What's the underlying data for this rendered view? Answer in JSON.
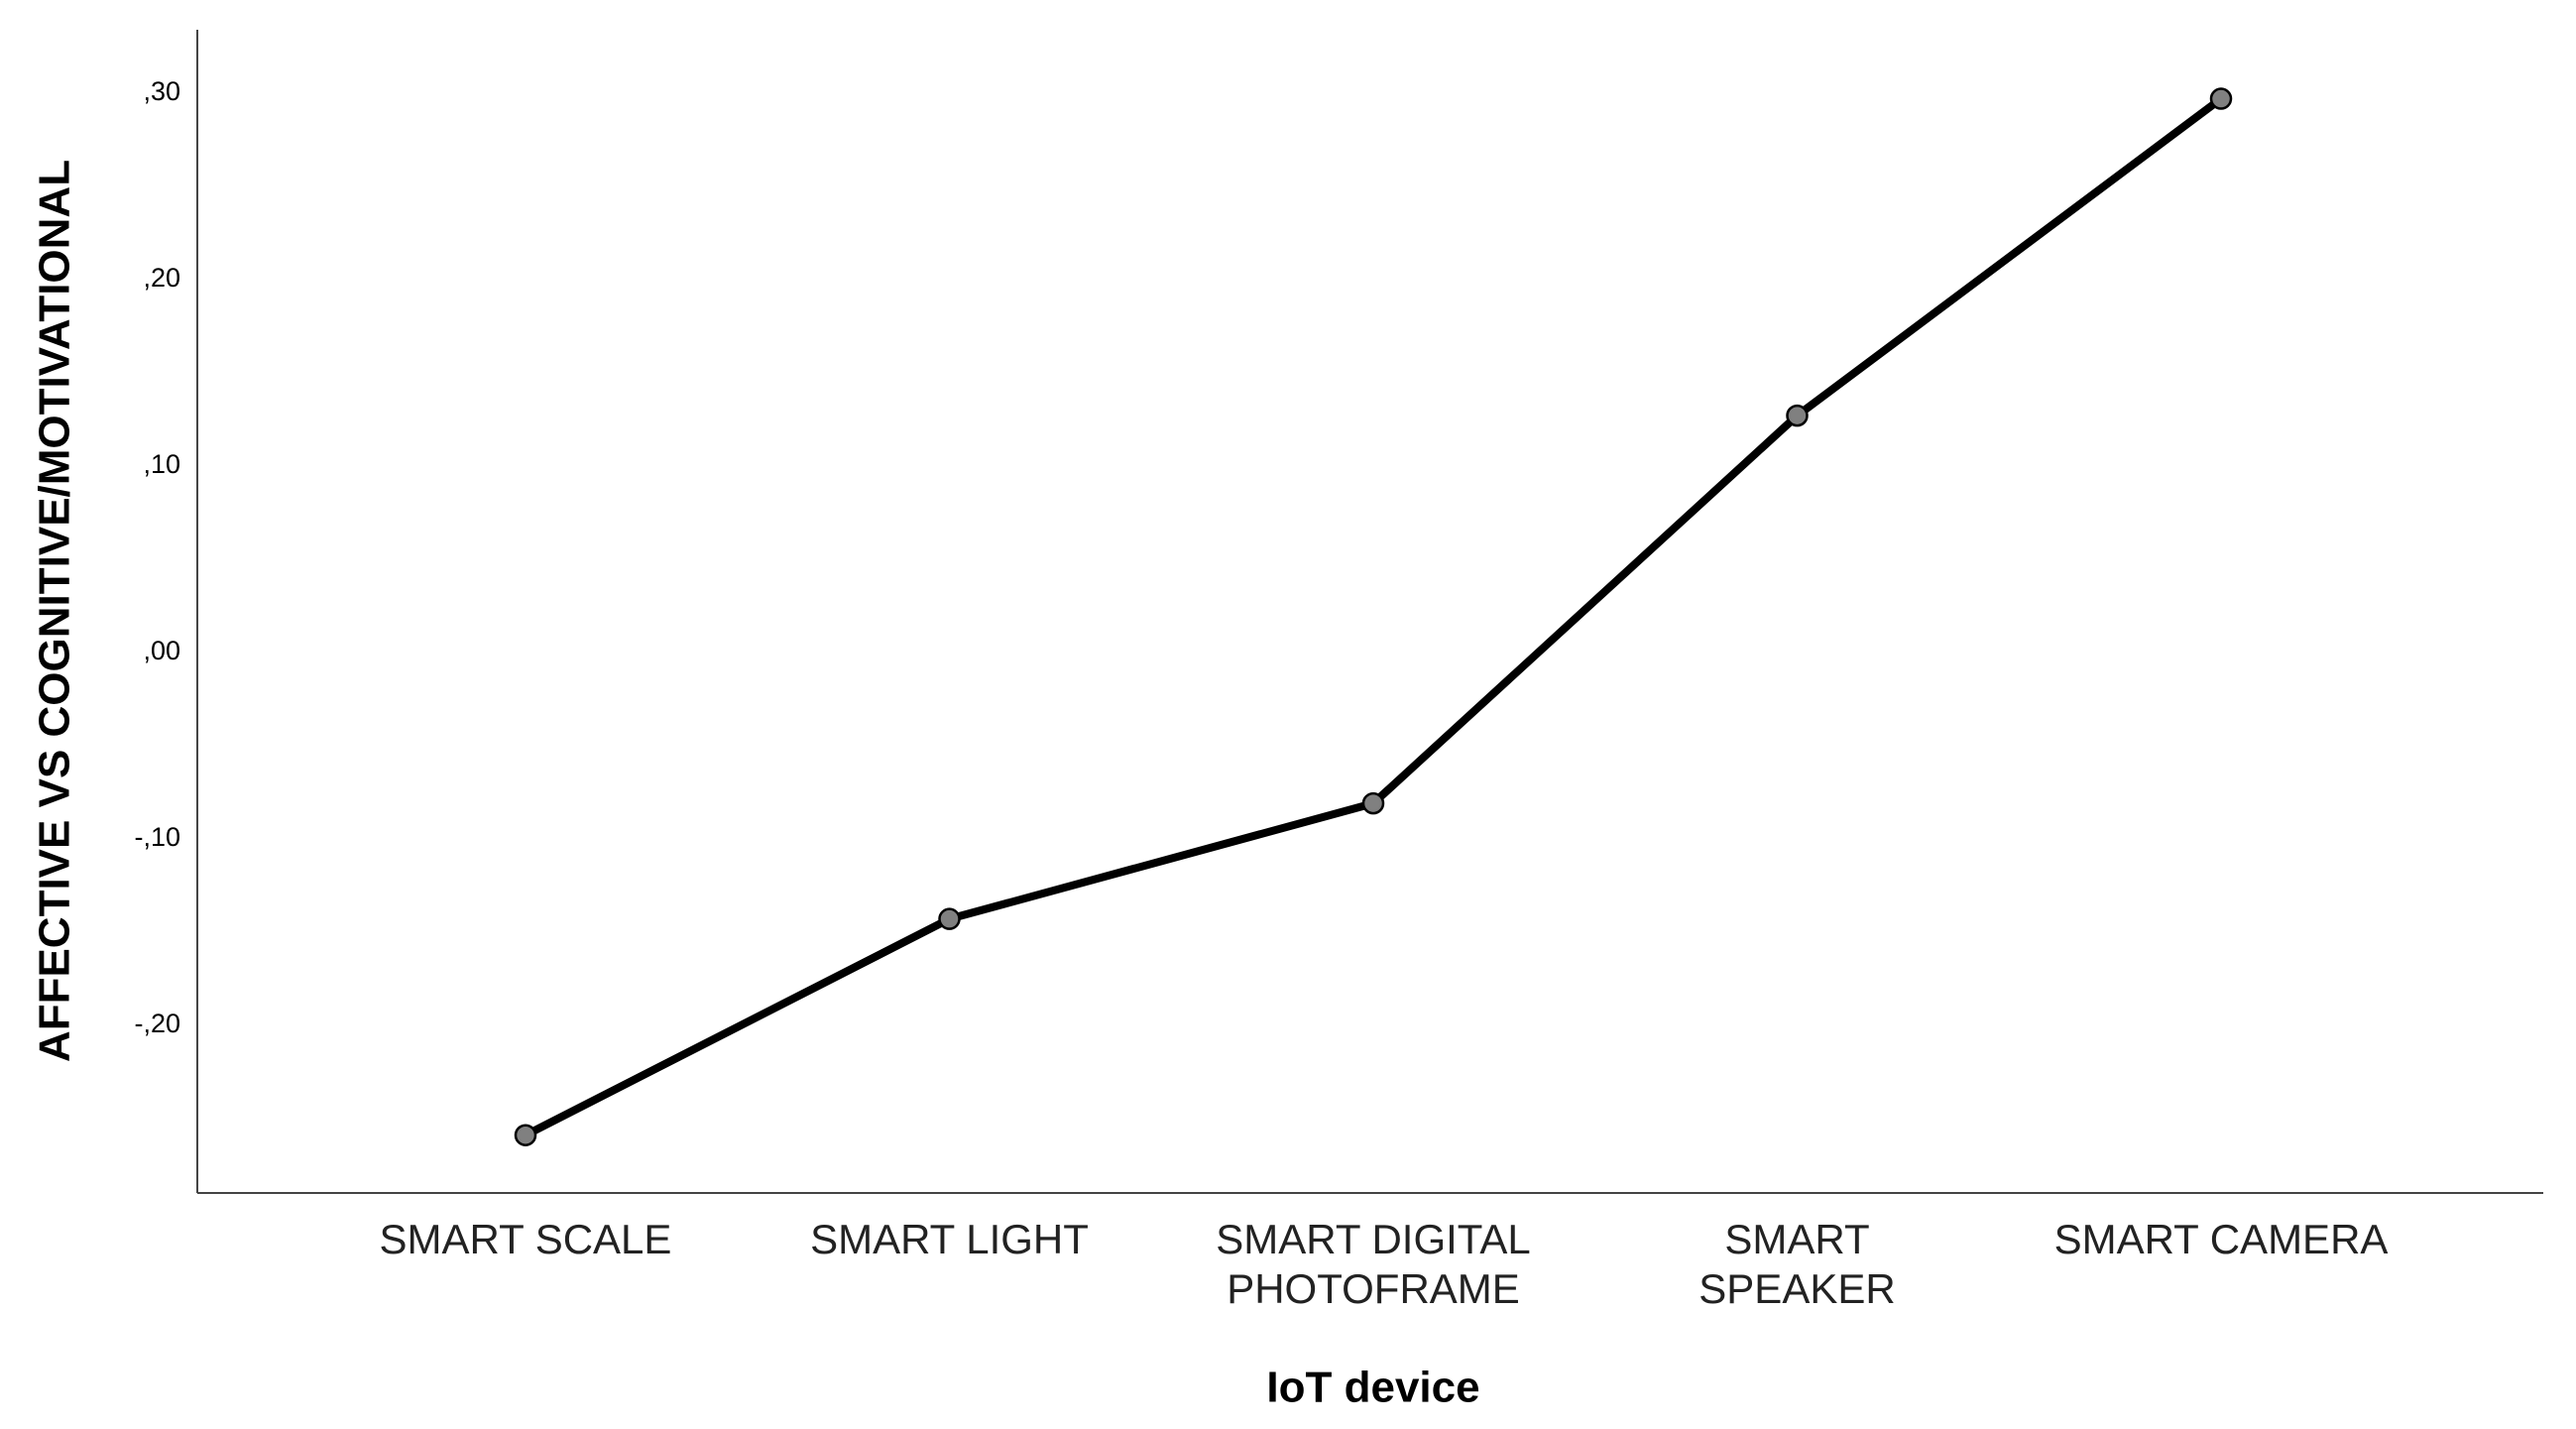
{
  "chart_data": {
    "type": "line",
    "x_label": "IoT device",
    "y_label": "AFFECTIVE VS COGNITIVE/MOTIVATIONAL",
    "categories": [
      "SMART SCALE",
      "SMART LIGHT",
      "SMART DIGITAL\nPHOTOFRAME",
      "SMART\nSPEAKER",
      "SMART CAMERA"
    ],
    "series": [
      {
        "color": "#000000",
        "marker_color": "#808080",
        "values": [
          -0.259,
          -0.143,
          -0.081,
          0.127,
          0.297
        ]
      }
    ],
    "ylim": [
      -0.29,
      0.334
    ],
    "yticks": [
      {
        "value": -0.2,
        "label": "-,20"
      },
      {
        "value": -0.1,
        "label": "-,10"
      },
      {
        "value": 0,
        "label": ",00"
      },
      {
        "value": 0.1,
        "label": ",10"
      },
      {
        "value": 0.2,
        "label": ",20"
      },
      {
        "value": 0.3,
        "label": ",30"
      }
    ],
    "grid": false
  }
}
